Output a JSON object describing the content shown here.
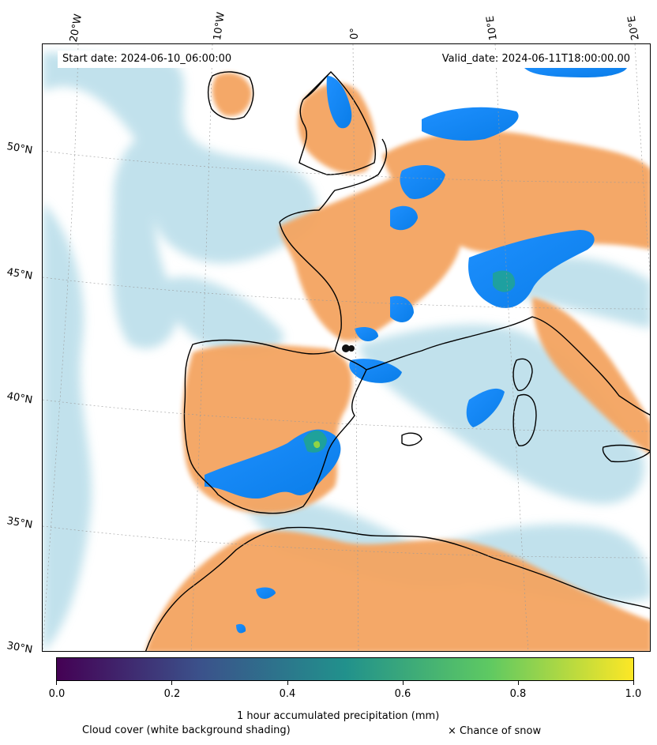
{
  "header": {
    "start_date": "Start date: 2024-06-10_06:00:00",
    "valid_date": "Valid_date: 2024-06-11T18:00:00.00"
  },
  "longitude_labels": [
    "20°W",
    "10°W",
    "0°",
    "10°E",
    "20°E"
  ],
  "latitude_labels": [
    "50°N",
    "45°N",
    "40°N",
    "35°N",
    "30°N"
  ],
  "colorbar": {
    "label": "1 hour accumulated precipitation (mm)",
    "ticks": [
      "0.0",
      "0.2",
      "0.4",
      "0.6",
      "0.8",
      "1.0"
    ],
    "range": [
      0.0,
      1.0
    ],
    "colormap": [
      "#440154",
      "#3b528b",
      "#21918c",
      "#5ec962",
      "#fde725"
    ]
  },
  "legend": {
    "cloud_cover": "Cloud cover (white background shading)",
    "snow": "× Chance of snow"
  },
  "colors": {
    "land_dry": "#f4a460",
    "cloud": "#add8e6",
    "precip_low": "#1e90ff",
    "coastline": "#000000"
  }
}
